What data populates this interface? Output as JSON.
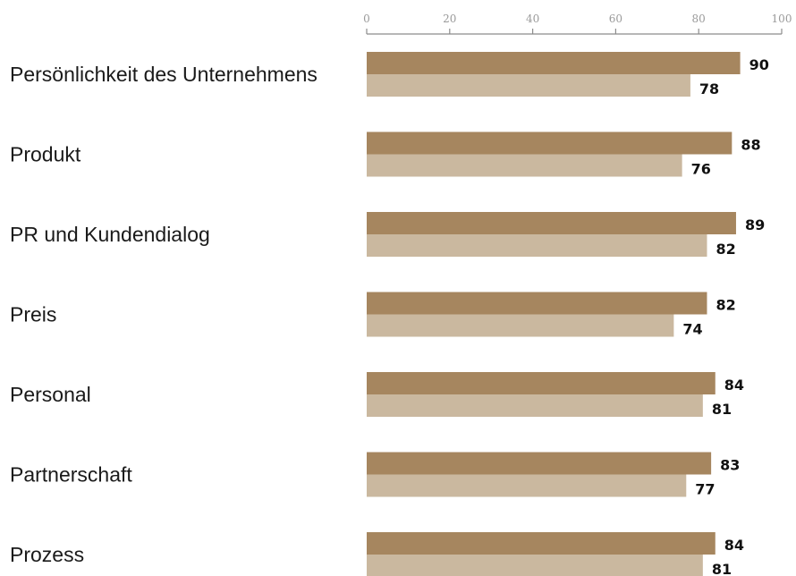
{
  "chart_data": {
    "type": "bar",
    "orientation": "horizontal",
    "categories": [
      "Persönlichkeit des Unternehmens",
      "Produkt",
      "PR und Kundendialog",
      "Preis",
      "Personal",
      "Partnerschaft",
      "Prozess"
    ],
    "series": [
      {
        "values": [
          90,
          88,
          89,
          82,
          84,
          83,
          84
        ],
        "color": "#a6865f"
      },
      {
        "values": [
          78,
          76,
          82,
          74,
          81,
          77,
          81
        ],
        "color": "#cab89f"
      }
    ],
    "xlim": [
      0,
      100
    ],
    "xticks": [
      "0",
      "20",
      "40",
      "60",
      "80",
      "100"
    ],
    "axis_position": "top",
    "grid": false,
    "legend": "none"
  }
}
